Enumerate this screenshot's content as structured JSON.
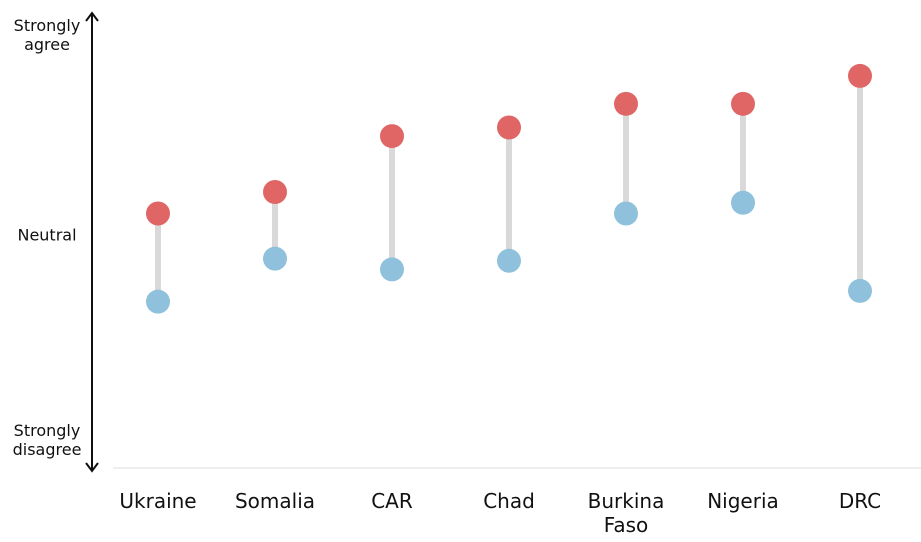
{
  "chart_data": {
    "type": "dumbbell",
    "categories": [
      "Ukraine",
      "Somalia",
      "CAR",
      "Chad",
      "Burkina Faso",
      "Nigeria",
      "DRC"
    ],
    "series": [
      {
        "color": "#e06666",
        "values": [
          0.1,
          0.2,
          0.46,
          0.5,
          0.61,
          0.61,
          0.74
        ]
      },
      {
        "color": "#8fc1dc",
        "values": [
          -0.31,
          -0.11,
          -0.16,
          -0.12,
          0.1,
          0.15,
          -0.26
        ]
      }
    ],
    "ylim": [
      -1,
      1
    ],
    "yticks": [
      {
        "value": 1,
        "label": "Strongly agree"
      },
      {
        "value": 0,
        "label": "Neutral"
      },
      {
        "value": -1,
        "label": "Strongly disagree"
      }
    ]
  }
}
